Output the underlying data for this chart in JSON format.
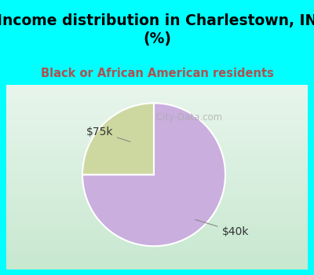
{
  "title": "Income distribution in Charlestown, IN\n(%)",
  "subtitle": "Black or African American residents",
  "slices": [
    75.0,
    25.0
  ],
  "labels": [
    "$40k",
    "$75k"
  ],
  "colors": [
    "#c9aede",
    "#cdd8a0"
  ],
  "start_angle": 90,
  "bg_color": "#00FFFF",
  "chart_box_color": "#f0f8f0",
  "title_fontsize": 13.5,
  "subtitle_fontsize": 10.5,
  "label_fontsize": 10,
  "watermark": "  City-Data.com"
}
